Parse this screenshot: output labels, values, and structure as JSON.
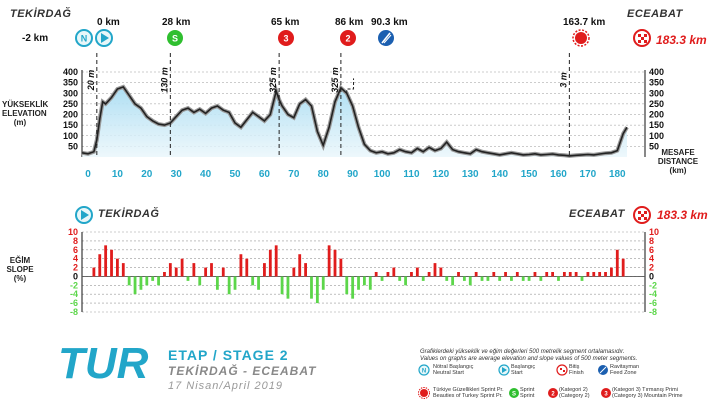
{
  "colors": {
    "accent": "#22a6c9",
    "red": "#e01c1c",
    "sprint_green": "#2fbf2f",
    "slope_up": "#e01c1c",
    "slope_down": "#5cd64a",
    "area_fill": "#a9dcf2",
    "axis_tick": "#22a6c9"
  },
  "header": {
    "start_place": "TEKİRDAĞ",
    "finish_place": "ECEABAT",
    "finish_km": "183.3 km",
    "neutral_km": "-2 km",
    "start_km": "0 km",
    "sprint_km": "28 km",
    "climb1_km": "65 km",
    "climb2_km": "86 km",
    "feed_km": "90.3 km",
    "beauty_km": "163.7 km",
    "climb1_badge": "3",
    "climb2_badge": "2",
    "sprint_badge": "S",
    "neutral_badge": "N"
  },
  "elevation_chart": {
    "ylabel_tr": "YÜKSEKLİK",
    "ylabel_en": "ELEVATION",
    "ylabel_unit": "(m)",
    "xlabel_tr": "MESAFE",
    "xlabel_en": "DISTANCE",
    "xlabel_unit": "(km)",
    "annotations": [
      "20 m",
      "130 m",
      "325 m",
      "325 m",
      "3 m"
    ]
  },
  "slope_chart": {
    "start_place": "TEKİRDAĞ",
    "finish_place": "ECEABAT",
    "finish_km": "183.3 km",
    "ylabel_tr": "EĞİM",
    "ylabel_en": "SLOPE",
    "ylabel_unit": "(%)"
  },
  "branding": {
    "logo": "TUR",
    "stage": "ETAP / STAGE 2",
    "route": "TEKİRDAĞ - ECEABAT",
    "date": "17 Nisan/April 2019"
  },
  "legend": {
    "note_tr": "Grafiklerdeki yükseklik ve eğim değerleri 500 metrelik segment ortalamasıdır.",
    "note_en": "Values on graphs are average elevation and slope values of 500 meter segments.",
    "items": [
      {
        "label_tr": "Nötral Başlangıç",
        "label_en": "Neutral Start"
      },
      {
        "label_tr": "Başlangıç",
        "label_en": "Start"
      },
      {
        "label_tr": "Bitiş",
        "label_en": "Finish"
      },
      {
        "label_tr": "Ravitayman",
        "label_en": "Feed Zone"
      },
      {
        "label_tr": "Türkiye Güzellikleri Sprint Pr.",
        "label_en": "Beauties of Turkey Sprint Pr."
      },
      {
        "label_tr": "Sprint",
        "label_en": "Sprint"
      },
      {
        "label_tr": "(Kategori 2)",
        "label_en": "(Category 2)"
      },
      {
        "label_tr": "(Kategori 3) Tırmanış Primi",
        "label_en": "(Category 3) Mountain Prime"
      }
    ]
  },
  "chart_data": [
    {
      "type": "area",
      "title": "",
      "xlabel": "MESAFE DISTANCE (km)",
      "ylabel": "YÜKSEKLİK ELEVATION (m)",
      "xlim": [
        -2,
        186
      ],
      "ylim": [
        0,
        400
      ],
      "xticks": [
        0,
        10,
        20,
        30,
        40,
        50,
        60,
        70,
        80,
        90,
        100,
        110,
        120,
        130,
        140,
        150,
        160,
        170,
        180
      ],
      "yticks": [
        50,
        100,
        150,
        200,
        250,
        300,
        350,
        400
      ],
      "grid": true,
      "series": [
        {
          "x": [
            -2,
            0,
            2,
            3,
            4,
            5,
            6,
            8,
            10,
            12,
            14,
            16,
            18,
            20,
            22,
            24,
            26,
            28,
            30,
            32,
            34,
            36,
            38,
            40,
            42,
            44,
            46,
            48,
            50,
            52,
            54,
            56,
            58,
            60,
            62,
            64,
            65,
            66,
            68,
            70,
            72,
            74,
            76,
            78,
            80,
            82,
            84,
            86,
            88,
            90,
            92,
            94,
            96,
            98,
            100,
            102,
            104,
            106,
            108,
            110,
            112,
            114,
            116,
            118,
            120,
            122,
            124,
            126,
            128,
            130,
            132,
            134,
            136,
            138,
            140,
            142,
            144,
            146,
            148,
            150,
            152,
            154,
            156,
            158,
            160,
            162,
            163.7,
            166,
            168,
            170,
            172,
            174,
            176,
            178,
            180,
            182,
            183.3
          ],
          "values": [
            20,
            15,
            25,
            80,
            180,
            260,
            250,
            280,
            320,
            330,
            290,
            250,
            230,
            190,
            170,
            155,
            150,
            160,
            190,
            220,
            230,
            210,
            225,
            205,
            230,
            240,
            220,
            210,
            160,
            140,
            175,
            210,
            190,
            170,
            200,
            310,
            270,
            240,
            200,
            185,
            250,
            270,
            240,
            120,
            55,
            140,
            260,
            325,
            300,
            240,
            140,
            60,
            30,
            20,
            25,
            15,
            20,
            35,
            25,
            20,
            40,
            25,
            45,
            30,
            40,
            70,
            35,
            25,
            20,
            15,
            35,
            25,
            20,
            15,
            10,
            15,
            20,
            15,
            10,
            12,
            15,
            10,
            12,
            14,
            10,
            8,
            5,
            8,
            10,
            12,
            10,
            14,
            18,
            20,
            30,
            110,
            140
          ]
        }
      ]
    },
    {
      "type": "bar",
      "title": "",
      "xlabel": "",
      "ylabel": "EĞİM SLOPE (%)",
      "xlim": [
        -2,
        186
      ],
      "ylim": [
        -8,
        10
      ],
      "yticks": [
        -8,
        -6,
        -4,
        -2,
        0,
        2,
        4,
        6,
        8,
        10
      ],
      "grid": true,
      "series": [
        {
          "x": [
            2,
            4,
            6,
            8,
            10,
            12,
            14,
            16,
            18,
            20,
            22,
            24,
            26,
            28,
            30,
            32,
            34,
            36,
            38,
            40,
            42,
            44,
            46,
            48,
            50,
            52,
            54,
            56,
            58,
            60,
            62,
            64,
            66,
            68,
            70,
            72,
            74,
            76,
            78,
            80,
            82,
            84,
            86,
            88,
            90,
            92,
            94,
            96,
            98,
            100,
            102,
            104,
            106,
            108,
            110,
            112,
            114,
            116,
            118,
            120,
            122,
            124,
            126,
            128,
            130,
            132,
            134,
            136,
            138,
            140,
            142,
            144,
            146,
            148,
            150,
            152,
            154,
            156,
            158,
            160,
            162,
            164,
            166,
            168,
            170,
            172,
            174,
            176,
            178,
            180,
            182
          ],
          "values": [
            2,
            5,
            7,
            6,
            4,
            3,
            -2,
            -4,
            -3,
            -2,
            -1,
            -2,
            1,
            3,
            2,
            4,
            -1,
            3,
            -2,
            2,
            3,
            -3,
            2,
            -4,
            -3,
            5,
            4,
            -2,
            -3,
            3,
            6,
            7,
            -4,
            -5,
            2,
            5,
            3,
            -5,
            -6,
            -3,
            7,
            6,
            4,
            -4,
            -5,
            -3,
            -2,
            -3,
            1,
            -1,
            1,
            2,
            -1,
            -2,
            1,
            2,
            -1,
            1,
            3,
            2,
            -1,
            -2,
            1,
            -1,
            -2,
            1,
            -1,
            -1,
            1,
            -1,
            1,
            -1,
            1,
            -1,
            -1,
            1,
            -1,
            1,
            1,
            -1,
            1,
            1,
            1,
            -1,
            1,
            1,
            1,
            1,
            2,
            6,
            4
          ]
        }
      ]
    }
  ]
}
